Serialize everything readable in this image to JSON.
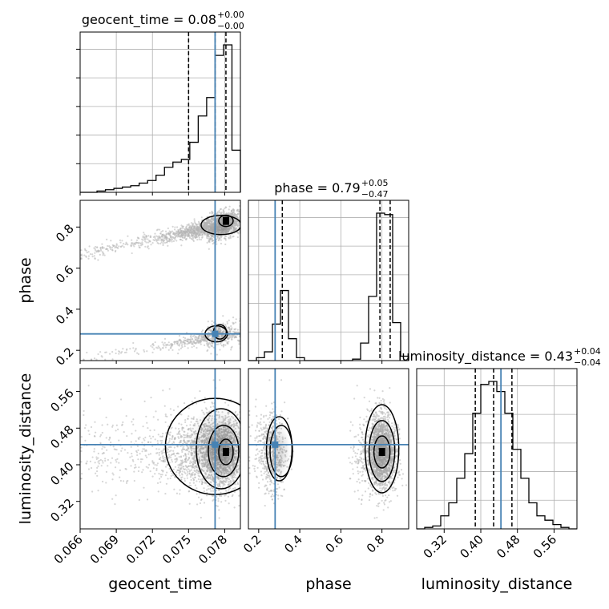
{
  "chart_data": {
    "type": "corner",
    "parameters": [
      {
        "name": "geocent_time",
        "axis_label": "geocent_time",
        "title_prefix": "geocent_time = ",
        "median": "0.08",
        "plus": "+0.00",
        "minus": "−0.00",
        "range": [
          0.066,
          0.0793
        ],
        "ticks": [
          0.066,
          0.069,
          0.072,
          0.075,
          0.078
        ],
        "tick_labels": [
          "0.066",
          "0.069",
          "0.072",
          "0.075",
          "0.078"
        ],
        "truth": 0.0772,
        "quantiles": [
          0.075,
          0.0772,
          0.0781
        ]
      },
      {
        "name": "phase",
        "axis_label": "phase",
        "title_prefix": "phase = ",
        "median": "0.79",
        "plus": "+0.05",
        "minus": "−0.47",
        "range": [
          0.15,
          0.93
        ],
        "ticks": [
          0.2,
          0.4,
          0.6,
          0.8
        ],
        "tick_labels": [
          "0.2",
          "0.4",
          "0.6",
          "0.8"
        ],
        "truth": 0.28,
        "quantiles": [
          0.315,
          0.79,
          0.84
        ]
      },
      {
        "name": "luminosity_distance",
        "axis_label": "luminosity_distance",
        "title_prefix": "luminosity_distance = ",
        "median": "0.43",
        "plus": "+0.04",
        "minus": "−0.04",
        "range": [
          0.26,
          0.61
        ],
        "ticks": [
          0.32,
          0.4,
          0.48,
          0.56
        ],
        "tick_labels": [
          "0.32",
          "0.40",
          "0.48",
          "0.56"
        ],
        "truth": 0.444,
        "quantiles": [
          0.388,
          0.428,
          0.468
        ]
      }
    ],
    "histograms": [
      {
        "param": "geocent_time",
        "bins": [
          0.066,
          0.0667,
          0.0674,
          0.0681,
          0.0688,
          0.0695,
          0.0702,
          0.0709,
          0.0716,
          0.0723,
          0.073,
          0.0737,
          0.0744,
          0.0751,
          0.0758,
          0.0765,
          0.0772,
          0.0779,
          0.0786,
          0.0793
        ],
        "counts": [
          0,
          0,
          1,
          2,
          3,
          4,
          5,
          7,
          9,
          13,
          19,
          23,
          25,
          38,
          58,
          72,
          104,
          112,
          32
        ]
      },
      {
        "param": "phase",
        "bins": [
          0.15,
          0.189,
          0.228,
          0.267,
          0.306,
          0.345,
          0.384,
          0.423,
          0.462,
          0.501,
          0.54,
          0.579,
          0.618,
          0.657,
          0.696,
          0.735,
          0.774,
          0.813,
          0.852,
          0.891,
          0.93
        ],
        "counts": [
          0,
          2,
          6,
          25,
          48,
          15,
          2,
          0,
          0,
          0,
          0,
          0,
          0,
          1,
          12,
          44,
          101,
          100,
          26,
          3
        ]
      },
      {
        "param": "luminosity_distance",
        "bins": [
          0.26,
          0.2775,
          0.295,
          0.3125,
          0.33,
          0.3475,
          0.365,
          0.3825,
          0.4,
          0.4175,
          0.435,
          0.4525,
          0.47,
          0.4875,
          0.505,
          0.5225,
          0.54,
          0.5575,
          0.575,
          0.5925,
          0.61
        ],
        "counts": [
          0,
          1,
          2,
          9,
          18,
          35,
          52,
          80,
          100,
          102,
          95,
          80,
          55,
          35,
          18,
          9,
          6,
          3,
          1,
          0
        ]
      }
    ],
    "grid": true,
    "colors": {
      "truth": "#4682b4",
      "hist": "#000000",
      "contour": "#000000",
      "samples": "#b4b4b4"
    }
  }
}
